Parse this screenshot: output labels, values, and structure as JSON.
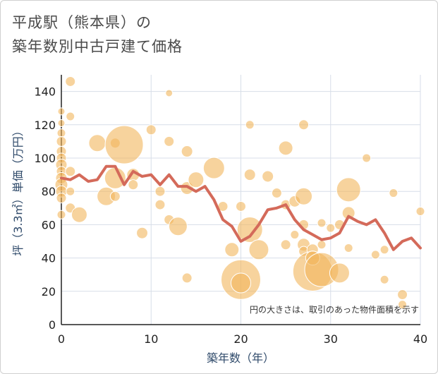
{
  "title": {
    "line1": "平成駅（熊本県）の",
    "line2": "築年数別中古戸建て価格"
  },
  "chart_data": {
    "type": "scatter",
    "xlabel": "築年数（年）",
    "ylabel": "坪（3.3㎡）単価（万円）",
    "xlim": [
      0,
      40
    ],
    "ylim": [
      0,
      150
    ],
    "x_ticks": [
      0,
      10,
      20,
      30,
      40
    ],
    "y_ticks": [
      0,
      20,
      40,
      60,
      80,
      100,
      120,
      140
    ],
    "grid": true,
    "note": "円の大きさは、取引のあった物件面積を示す",
    "colors": {
      "bubble": "#f2b55c",
      "line": "#d46a5a",
      "grid": "#d7dee8"
    },
    "bubbles": [
      {
        "x": 0,
        "y": 128,
        "s": 5
      },
      {
        "x": 0,
        "y": 121,
        "s": 5
      },
      {
        "x": 0,
        "y": 115,
        "s": 6
      },
      {
        "x": 0,
        "y": 110,
        "s": 7
      },
      {
        "x": 0,
        "y": 104,
        "s": 7
      },
      {
        "x": 0,
        "y": 100,
        "s": 7
      },
      {
        "x": 0,
        "y": 96,
        "s": 8
      },
      {
        "x": 0,
        "y": 92,
        "s": 7
      },
      {
        "x": 0,
        "y": 88,
        "s": 8
      },
      {
        "x": 0,
        "y": 84,
        "s": 9
      },
      {
        "x": 0,
        "y": 80,
        "s": 8
      },
      {
        "x": 0,
        "y": 76,
        "s": 7
      },
      {
        "x": 0,
        "y": 66,
        "s": 6
      },
      {
        "x": 1,
        "y": 146,
        "s": 7
      },
      {
        "x": 1,
        "y": 125,
        "s": 6
      },
      {
        "x": 1,
        "y": 92,
        "s": 7
      },
      {
        "x": 1,
        "y": 80,
        "s": 6
      },
      {
        "x": 1,
        "y": 70,
        "s": 7
      },
      {
        "x": 2,
        "y": 66,
        "s": 11
      },
      {
        "x": 4,
        "y": 109,
        "s": 12
      },
      {
        "x": 5,
        "y": 77,
        "s": 13
      },
      {
        "x": 6,
        "y": 109,
        "s": 7
      },
      {
        "x": 6,
        "y": 88,
        "s": 15
      },
      {
        "x": 6,
        "y": 77,
        "s": 7
      },
      {
        "x": 7,
        "y": 108,
        "s": 27
      },
      {
        "x": 8,
        "y": 90,
        "s": 9
      },
      {
        "x": 8,
        "y": 84,
        "s": 7
      },
      {
        "x": 9,
        "y": 55,
        "s": 8
      },
      {
        "x": 10,
        "y": 117,
        "s": 7
      },
      {
        "x": 11,
        "y": 80,
        "s": 7
      },
      {
        "x": 11,
        "y": 72,
        "s": 7
      },
      {
        "x": 12,
        "y": 139,
        "s": 5
      },
      {
        "x": 12,
        "y": 110,
        "s": 7
      },
      {
        "x": 12,
        "y": 63,
        "s": 7
      },
      {
        "x": 13,
        "y": 59,
        "s": 13
      },
      {
        "x": 14,
        "y": 104,
        "s": 8
      },
      {
        "x": 14,
        "y": 82,
        "s": 9
      },
      {
        "x": 14,
        "y": 28,
        "s": 7
      },
      {
        "x": 15,
        "y": 87,
        "s": 11
      },
      {
        "x": 17,
        "y": 94,
        "s": 15
      },
      {
        "x": 18,
        "y": 71,
        "s": 7
      },
      {
        "x": 19,
        "y": 45,
        "s": 10
      },
      {
        "x": 20,
        "y": 71,
        "s": 7
      },
      {
        "x": 20,
        "y": 27,
        "s": 28
      },
      {
        "x": 20,
        "y": 25,
        "s": 14
      },
      {
        "x": 21,
        "y": 120,
        "s": 6
      },
      {
        "x": 21,
        "y": 90,
        "s": 8
      },
      {
        "x": 21,
        "y": 57,
        "s": 18
      },
      {
        "x": 22,
        "y": 45,
        "s": 14
      },
      {
        "x": 23,
        "y": 89,
        "s": 8
      },
      {
        "x": 24,
        "y": 79,
        "s": 7
      },
      {
        "x": 25,
        "y": 106,
        "s": 10
      },
      {
        "x": 25,
        "y": 72,
        "s": 7
      },
      {
        "x": 25,
        "y": 48,
        "s": 7
      },
      {
        "x": 26,
        "y": 74,
        "s": 8
      },
      {
        "x": 26,
        "y": 54,
        "s": 6
      },
      {
        "x": 27,
        "y": 120,
        "s": 7
      },
      {
        "x": 27,
        "y": 77,
        "s": 12
      },
      {
        "x": 27,
        "y": 60,
        "s": 7
      },
      {
        "x": 27,
        "y": 48,
        "s": 9
      },
      {
        "x": 27,
        "y": 44,
        "s": 7
      },
      {
        "x": 28,
        "y": 45,
        "s": 8
      },
      {
        "x": 28,
        "y": 32,
        "s": 28
      },
      {
        "x": 28,
        "y": 40,
        "s": 10
      },
      {
        "x": 29,
        "y": 33,
        "s": 24
      },
      {
        "x": 29,
        "y": 61,
        "s": 6
      },
      {
        "x": 29,
        "y": 48,
        "s": 6
      },
      {
        "x": 30,
        "y": 58,
        "s": 6
      },
      {
        "x": 31,
        "y": 31,
        "s": 14
      },
      {
        "x": 31,
        "y": 60,
        "s": 7
      },
      {
        "x": 32,
        "y": 81,
        "s": 17
      },
      {
        "x": 32,
        "y": 67,
        "s": 9
      },
      {
        "x": 32,
        "y": 46,
        "s": 6
      },
      {
        "x": 34,
        "y": 100,
        "s": 6
      },
      {
        "x": 35,
        "y": 42,
        "s": 6
      },
      {
        "x": 36,
        "y": 45,
        "s": 6
      },
      {
        "x": 36,
        "y": 27,
        "s": 6
      },
      {
        "x": 37,
        "y": 79,
        "s": 6
      },
      {
        "x": 38,
        "y": 18,
        "s": 7
      },
      {
        "x": 38,
        "y": 12,
        "s": 6
      },
      {
        "x": 40,
        "y": 68,
        "s": 6
      }
    ],
    "line": {
      "x": [
        0,
        1,
        2,
        3,
        4,
        5,
        6,
        7,
        8,
        9,
        10,
        11,
        12,
        13,
        14,
        15,
        16,
        17,
        18,
        19,
        20,
        21,
        22,
        23,
        24,
        25,
        26,
        27,
        28,
        29,
        30,
        31,
        32,
        33,
        34,
        35,
        36,
        37,
        38,
        39,
        40
      ],
      "y": [
        88,
        87,
        90,
        86,
        87,
        95,
        95,
        84,
        92,
        89,
        90,
        84,
        90,
        83,
        83,
        80,
        83,
        75,
        63,
        59,
        50,
        53,
        60,
        69,
        70,
        72,
        63,
        57,
        54,
        51,
        52,
        55,
        65,
        62,
        60,
        63,
        55,
        45,
        50,
        52,
        46
      ]
    }
  }
}
